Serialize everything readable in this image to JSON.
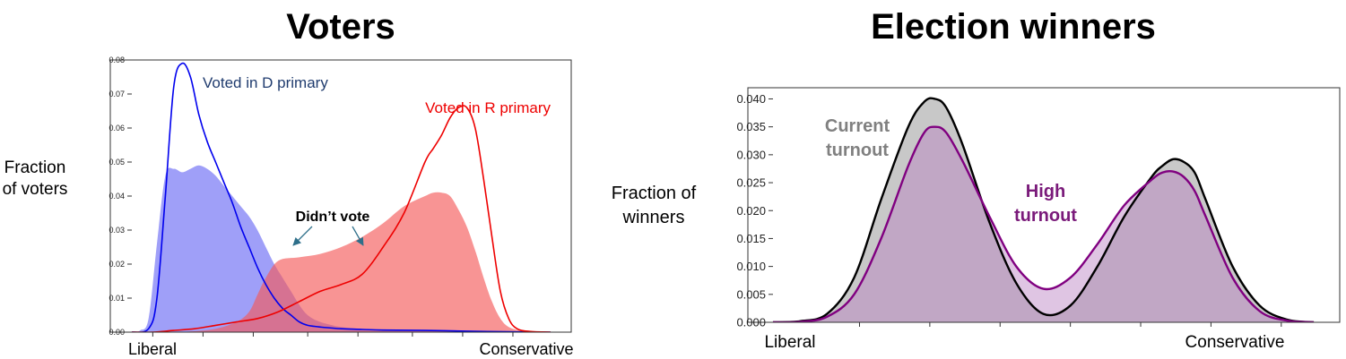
{
  "chart_data": [
    {
      "type": "area",
      "title": "Voters",
      "ylabel": "Fraction of voters",
      "xaxis_labels": {
        "left": "Liberal",
        "right": "Conservative"
      },
      "x_range": [
        0,
        1
      ],
      "ylim": [
        0,
        0.08
      ],
      "yticks": [
        "0.00",
        "0.01",
        "0.02",
        "0.03",
        "0.04",
        "0.05",
        "0.06",
        "0.07",
        "0.08"
      ],
      "grid": false,
      "annotations": [
        "Voted in D primary",
        "Voted in R primary",
        "Didn’t vote"
      ],
      "colors": {
        "d_line": "#0000ee",
        "d_fill": "#8f8ff8",
        "r_line": "#ee0000",
        "r_fill": "#f98a8a",
        "overlap": "#9b5a9e",
        "label_d": "#1f3b6e",
        "label_r": "#ee0000",
        "arrow": "#2e6f8a"
      },
      "series": [
        {
          "name": "Voted in D primary",
          "kind": "line",
          "x": [
            0.0,
            0.04,
            0.06,
            0.08,
            0.1,
            0.12,
            0.14,
            0.16,
            0.18,
            0.2,
            0.22,
            0.24,
            0.26,
            0.28,
            0.3,
            0.32,
            0.34,
            0.36,
            0.38,
            0.4,
            0.42,
            0.45,
            0.5,
            0.55,
            0.6,
            0.7,
            0.8,
            0.9,
            1.0
          ],
          "y": [
            0.0,
            0.001,
            0.01,
            0.04,
            0.072,
            0.079,
            0.075,
            0.064,
            0.056,
            0.05,
            0.044,
            0.038,
            0.031,
            0.025,
            0.019,
            0.014,
            0.01,
            0.007,
            0.005,
            0.003,
            0.002,
            0.0015,
            0.001,
            0.0008,
            0.0006,
            0.0005,
            0.0003,
            0.0001,
            0.0
          ]
        },
        {
          "name": "Voted in R primary",
          "kind": "line",
          "x": [
            0.0,
            0.05,
            0.1,
            0.15,
            0.2,
            0.25,
            0.3,
            0.35,
            0.4,
            0.45,
            0.5,
            0.55,
            0.6,
            0.65,
            0.7,
            0.72,
            0.74,
            0.76,
            0.78,
            0.8,
            0.82,
            0.84,
            0.86,
            0.88,
            0.9,
            0.92,
            0.95,
            1.0
          ],
          "y": [
            0.0,
            0.0,
            0.0005,
            0.001,
            0.002,
            0.003,
            0.004,
            0.006,
            0.009,
            0.012,
            0.014,
            0.017,
            0.025,
            0.035,
            0.05,
            0.054,
            0.058,
            0.063,
            0.066,
            0.066,
            0.06,
            0.045,
            0.028,
            0.012,
            0.004,
            0.001,
            0.0002,
            0.0
          ]
        },
        {
          "name": "Didn’t vote (liberal)",
          "kind": "area",
          "x": [
            0.0,
            0.02,
            0.04,
            0.06,
            0.08,
            0.1,
            0.12,
            0.14,
            0.16,
            0.18,
            0.2,
            0.22,
            0.24,
            0.26,
            0.28,
            0.3,
            0.32,
            0.34,
            0.36,
            0.38,
            0.4,
            0.42,
            0.45,
            0.5,
            0.55,
            0.6,
            0.7,
            0.8,
            0.9,
            1.0
          ],
          "y": [
            0.0,
            0.0005,
            0.004,
            0.026,
            0.046,
            0.048,
            0.047,
            0.048,
            0.049,
            0.048,
            0.046,
            0.043,
            0.04,
            0.037,
            0.034,
            0.03,
            0.025,
            0.02,
            0.016,
            0.012,
            0.008,
            0.005,
            0.003,
            0.0015,
            0.001,
            0.0005,
            0.0003,
            0.0001,
            0.0,
            0.0
          ]
        },
        {
          "name": "Didn’t vote (conservative)",
          "kind": "area",
          "x": [
            0.0,
            0.1,
            0.15,
            0.2,
            0.25,
            0.28,
            0.3,
            0.32,
            0.35,
            0.4,
            0.45,
            0.5,
            0.55,
            0.6,
            0.65,
            0.7,
            0.72,
            0.74,
            0.76,
            0.78,
            0.8,
            0.82,
            0.84,
            0.86,
            0.88,
            0.9,
            0.93,
            0.96,
            1.0
          ],
          "y": [
            0.0,
            0.0,
            0.0003,
            0.001,
            0.003,
            0.006,
            0.011,
            0.016,
            0.021,
            0.022,
            0.023,
            0.025,
            0.028,
            0.032,
            0.037,
            0.04,
            0.041,
            0.041,
            0.04,
            0.036,
            0.031,
            0.024,
            0.016,
            0.009,
            0.004,
            0.0015,
            0.0004,
            0.0001,
            0.0
          ]
        }
      ]
    },
    {
      "type": "area",
      "title": "Election winners",
      "ylabel": "Fraction of winners",
      "xaxis_labels": {
        "left": "Liberal",
        "right": "Conservative"
      },
      "x_range": [
        0,
        1
      ],
      "ylim": [
        0,
        0.042
      ],
      "yticks": [
        "0.000",
        "0.005",
        "0.010",
        "0.015",
        "0.020",
        "0.025",
        "0.030",
        "0.035",
        "0.040"
      ],
      "grid": false,
      "annotations": [
        "Current turnout",
        "High turnout"
      ],
      "colors": {
        "current_line": "#000000",
        "current_fill": "#c4c4c4",
        "high_line": "#800080",
        "high_fill": "#e4cbe4",
        "overlap": "#b9a3bd",
        "label_current": "#808080",
        "label_high": "#7a1a7a"
      },
      "series": [
        {
          "name": "Current turnout",
          "x": [
            0.0,
            0.05,
            0.1,
            0.15,
            0.2,
            0.25,
            0.28,
            0.3,
            0.32,
            0.35,
            0.4,
            0.45,
            0.5,
            0.55,
            0.6,
            0.65,
            0.7,
            0.72,
            0.74,
            0.76,
            0.78,
            0.8,
            0.85,
            0.9,
            0.95,
            1.0
          ],
          "y": [
            0.0,
            0.0002,
            0.0015,
            0.008,
            0.022,
            0.035,
            0.0395,
            0.04,
            0.0385,
            0.032,
            0.018,
            0.007,
            0.0015,
            0.003,
            0.01,
            0.019,
            0.026,
            0.028,
            0.0292,
            0.0287,
            0.0268,
            0.022,
            0.01,
            0.003,
            0.0005,
            0.0
          ]
        },
        {
          "name": "High turnout",
          "x": [
            0.0,
            0.05,
            0.1,
            0.15,
            0.2,
            0.25,
            0.28,
            0.3,
            0.32,
            0.35,
            0.4,
            0.45,
            0.5,
            0.55,
            0.6,
            0.65,
            0.7,
            0.72,
            0.74,
            0.76,
            0.78,
            0.8,
            0.85,
            0.9,
            0.95,
            1.0
          ],
          "y": [
            0.0,
            0.0001,
            0.001,
            0.005,
            0.015,
            0.028,
            0.034,
            0.035,
            0.034,
            0.029,
            0.019,
            0.01,
            0.006,
            0.008,
            0.014,
            0.021,
            0.0255,
            0.0268,
            0.027,
            0.026,
            0.0235,
            0.019,
            0.008,
            0.002,
            0.0003,
            0.0
          ]
        }
      ]
    }
  ]
}
